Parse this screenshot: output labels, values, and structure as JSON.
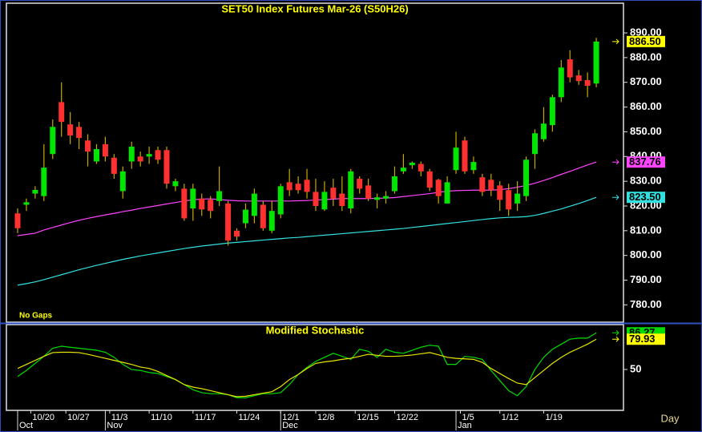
{
  "chart_data": [
    {
      "type": "candlestick",
      "title": "SET50 Index Futures Mar-26 (S50H26)",
      "annotation": "No Gaps",
      "open": [
        817,
        820.5,
        825,
        824,
        841,
        862,
        853,
        852,
        846.5,
        838,
        845,
        839.5,
        826,
        838,
        840,
        840,
        842.6,
        842.6,
        828,
        827,
        819,
        823,
        822.5,
        822,
        821,
        810,
        813,
        816,
        820.5,
        810,
        816.6,
        829.6,
        829,
        830.6,
        825.7,
        818.6,
        827.4,
        825,
        819,
        831,
        828.3,
        822.5,
        823,
        826,
        834,
        836.5,
        837,
        834,
        830.6,
        821,
        834.5,
        846.5,
        834.5,
        831.6,
        830.6,
        828.3,
        826.4,
        821,
        824,
        841,
        847,
        852.7,
        864,
        879.3,
        872.8,
        870.9,
        869.5
      ],
      "high": [
        819,
        823,
        828,
        845,
        855,
        870,
        858,
        854,
        849,
        845,
        848,
        841,
        836,
        846,
        842,
        844,
        844,
        844,
        831,
        829,
        829,
        825,
        824,
        836,
        822,
        811,
        821,
        827,
        822,
        822,
        829,
        835,
        832,
        835,
        831,
        830,
        831,
        832,
        835,
        832,
        831,
        825,
        826,
        836,
        841,
        838,
        838,
        835,
        831,
        832,
        850,
        848,
        840,
        833,
        833,
        830,
        829,
        830,
        840,
        851,
        860,
        865,
        879,
        883,
        875,
        874,
        888
      ],
      "low": [
        809,
        818,
        823,
        822,
        839,
        848,
        845,
        843,
        836,
        837,
        838,
        831,
        823,
        835,
        836,
        837,
        837,
        827,
        826,
        814,
        814,
        816,
        815,
        820,
        804,
        806,
        811,
        813,
        810,
        809,
        815,
        824,
        825,
        823,
        818,
        818,
        820,
        818,
        817,
        825,
        822,
        819,
        821,
        825,
        833,
        835,
        832,
        826,
        821,
        821,
        833,
        833,
        833,
        824,
        824,
        818,
        816,
        818,
        822,
        835,
        846,
        850,
        862,
        870,
        869,
        864,
        868
      ],
      "close": [
        811,
        821.5,
        826.5,
        835.5,
        852,
        854,
        848.5,
        847.5,
        842,
        843,
        840,
        833,
        834,
        844,
        838,
        841,
        838.7,
        829,
        830,
        815,
        827,
        818.6,
        818,
        826,
        806,
        807.6,
        818.5,
        825,
        811,
        818,
        828,
        826.4,
        826.4,
        825.7,
        820,
        825.7,
        823,
        820,
        834,
        827,
        823,
        823.5,
        824,
        832,
        835.5,
        837.5,
        834,
        827.4,
        824,
        829.6,
        843.6,
        834,
        837.8,
        825.7,
        826.4,
        822.5,
        818.6,
        825,
        838.7,
        849.4,
        853.3,
        864,
        876,
        872,
        870.5,
        868.6,
        886.5
      ],
      "up_color": "#00e600",
      "down_color": "#ff3030",
      "wick_color": "#c8a800",
      "series": [
        {
          "color": "#ff44ff",
          "values": [
            808,
            808.5,
            809,
            810.3,
            811.3,
            812.3,
            813.3,
            814.2,
            815,
            815.7,
            816.4,
            817,
            817.7,
            818.3,
            819,
            819.6,
            820.2,
            820.8,
            821.4,
            822,
            822.5,
            822.8,
            822.9,
            822.6,
            822.3,
            822.1,
            822,
            822,
            822,
            822,
            822,
            822,
            822.1,
            822.2,
            822.4,
            822.6,
            822.8,
            823,
            823,
            823,
            823,
            823.1,
            823.2,
            823.4,
            823.8,
            824.2,
            824.6,
            825,
            825.5,
            826,
            826.2,
            826.3,
            826.4,
            826.4,
            826.4,
            826.6,
            827,
            827.6,
            828.3,
            829.2,
            830.3,
            831.5,
            832.8,
            834,
            835.3,
            836.6,
            837.76
          ]
        },
        {
          "color": "#33e0e0",
          "values": [
            788,
            788.6,
            789.3,
            790.2,
            791.2,
            792.2,
            793.2,
            794.2,
            795.1,
            796,
            796.8,
            797.6,
            798.4,
            799.1,
            799.8,
            800.4,
            801,
            801.6,
            802.2,
            802.8,
            803.3,
            803.8,
            804.2,
            804.6,
            805,
            805.3,
            805.6,
            805.9,
            806.2,
            806.5,
            806.8,
            807.1,
            807.3,
            807.6,
            807.9,
            808.2,
            808.5,
            808.8,
            809.1,
            809.4,
            809.7,
            810,
            810.3,
            810.6,
            810.9,
            811.3,
            811.7,
            812.1,
            812.5,
            812.9,
            813.3,
            813.7,
            814.1,
            814.5,
            814.9,
            815.2,
            815.4,
            815.5,
            815.7,
            816.2,
            817,
            817.9,
            818.8,
            819.9,
            821,
            822.2,
            823.5
          ]
        }
      ],
      "markers": [
        {
          "value": 886.5,
          "label": "886.50",
          "color": "#ffff00"
        },
        {
          "value": 837.76,
          "label": "837.76",
          "color": "#ff44ff"
        },
        {
          "value": 823.5,
          "label": "823.50",
          "color": "#33e0e0"
        }
      ],
      "xlim": [
        -1.28,
        69.1
      ],
      "ylim": [
        773,
        902
      ],
      "yticks": [
        {
          "value": 780,
          "label": "780.00"
        },
        {
          "value": 790,
          "label": "790.00"
        },
        {
          "value": 800,
          "label": "800.00"
        },
        {
          "value": 810,
          "label": "810.00"
        },
        {
          "value": 820,
          "label": "820.00"
        },
        {
          "value": 830,
          "label": "830.00"
        },
        {
          "value": 840,
          "label": "840.00"
        },
        {
          "value": 850,
          "label": "850.00"
        },
        {
          "value": 860,
          "label": "860.00"
        },
        {
          "value": 870,
          "label": "870.00"
        },
        {
          "value": 880,
          "label": "880.00"
        },
        {
          "value": 890,
          "label": "890.00"
        }
      ]
    },
    {
      "type": "line",
      "title": "Modified Stochastic",
      "series": [
        {
          "color": "#00dd00",
          "values": [
            43,
            49,
            56,
            63,
            71,
            73,
            72,
            71,
            70,
            69,
            67,
            62,
            55,
            50,
            49,
            47,
            46,
            43,
            40,
            35,
            30,
            27,
            26,
            26,
            25,
            22,
            22,
            24,
            26,
            26,
            27,
            35,
            45,
            52,
            58,
            62,
            66,
            63,
            60,
            70,
            68,
            62,
            70,
            67,
            66,
            69,
            72,
            74,
            73,
            55,
            55,
            63,
            62,
            60,
            49,
            39,
            29,
            24,
            33,
            50,
            62,
            70,
            75,
            80,
            81,
            81,
            86.27
          ]
        },
        {
          "color": "#e6e600",
          "values": [
            51,
            55,
            59,
            63,
            66.7,
            67,
            67,
            66.7,
            65,
            63,
            61,
            59,
            57,
            55,
            52.4,
            51,
            48,
            44,
            40,
            35,
            32.5,
            31,
            29,
            27,
            25,
            23,
            23.5,
            25,
            26.5,
            28,
            33,
            40,
            45,
            51,
            56,
            57.5,
            58.5,
            60,
            61,
            63,
            65,
            64,
            63,
            63,
            63.5,
            64.3,
            65.5,
            66.7,
            64.5,
            62,
            61,
            60.5,
            60,
            57,
            51,
            46,
            41,
            36.5,
            35,
            42,
            49,
            56,
            62,
            67,
            71,
            75,
            79.93
          ]
        }
      ],
      "markers": [
        {
          "value": 86.27,
          "label": "86.27",
          "color": "#00dd00"
        },
        {
          "value": 79.93,
          "label": "79.93",
          "color": "#ffff00"
        }
      ],
      "xlim": [
        -1.28,
        69.1
      ],
      "ylim": [
        9.5,
        94.4
      ],
      "yticks": [
        50
      ],
      "xticks": [
        {
          "value": 1.5,
          "label": "10/20"
        },
        {
          "value": 5.5,
          "label": "10/27"
        },
        {
          "value": 10.5,
          "label": "11/3"
        },
        {
          "value": 15,
          "label": "11/10"
        },
        {
          "value": 20,
          "label": "11/17"
        },
        {
          "value": 25,
          "label": "11/24"
        },
        {
          "value": 30,
          "label": "12/1"
        },
        {
          "value": 34,
          "label": "12/8"
        },
        {
          "value": 38.5,
          "label": "12/15"
        },
        {
          "value": 43,
          "label": "12/22"
        },
        {
          "value": 50.5,
          "label": "1/5"
        },
        {
          "value": 55,
          "label": "1/12"
        },
        {
          "value": 60,
          "label": "1/19"
        }
      ],
      "month_ticks": [
        {
          "value": 0,
          "label": "Oct"
        },
        {
          "value": 10,
          "label": "Nov"
        },
        {
          "value": 30,
          "label": "Dec"
        },
        {
          "value": 50,
          "label": "Jan"
        }
      ],
      "period_label": "Day"
    }
  ]
}
